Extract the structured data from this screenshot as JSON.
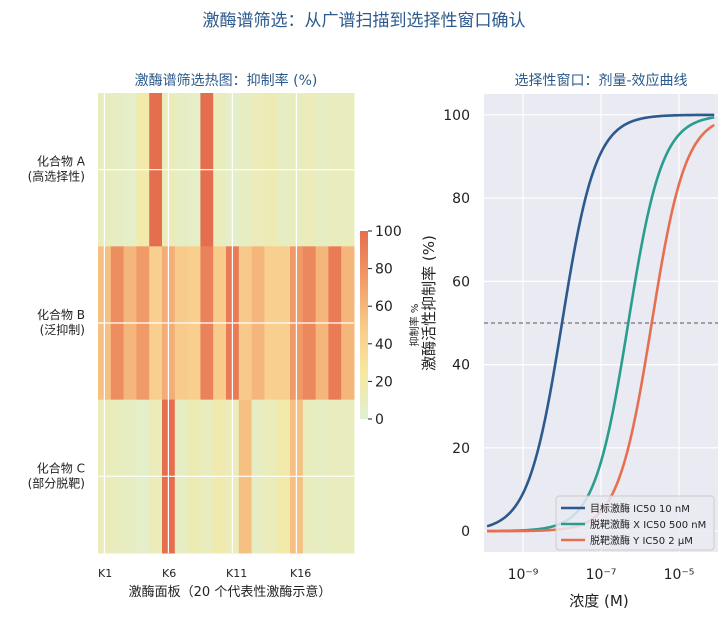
{
  "figure": {
    "title": "激酶谱筛选：从广谱扫描到选择性窗口确认",
    "title_color": "#2c5a8c"
  },
  "chart_data": [
    {
      "type": "heatmap",
      "title": "激酶谱筛选热图：抑制率 (%)",
      "xlabel": "激酶面板（20 个代表性激酶示意）",
      "x_ticks": [
        "K1",
        "K6",
        "K11",
        "K16"
      ],
      "x_tick_positions": [
        1,
        6,
        11,
        16
      ],
      "y_labels": [
        [
          "化合物 A",
          "(高选择性)"
        ],
        [
          "化合物 B",
          "(泛抑制)"
        ],
        [
          "化合物 C",
          "(部分脱靶)"
        ]
      ],
      "colorbar": {
        "label": "抑制率 %",
        "ticks": [
          0,
          20,
          40,
          60,
          80,
          100
        ],
        "range": [
          0,
          100
        ]
      },
      "color_stops": [
        "#dff0d2",
        "#f7e8a0",
        "#f8c98a",
        "#f09a68",
        "#e56e4f"
      ],
      "rows": [
        [
          10,
          8,
          5,
          20,
          100,
          12,
          8,
          6,
          100,
          10,
          5,
          8,
          12,
          15,
          8,
          10,
          12,
          8,
          10,
          10
        ],
        [
          55,
          82,
          60,
          75,
          45,
          65,
          48,
          45,
          88,
          48,
          92,
          50,
          60,
          45,
          45,
          75,
          85,
          60,
          92,
          60
        ],
        [
          12,
          10,
          8,
          5,
          12,
          100,
          8,
          15,
          10,
          18,
          12,
          55,
          8,
          12,
          20,
          55,
          10,
          8,
          10,
          10
        ]
      ]
    },
    {
      "type": "line",
      "title": "选择性窗口：剂量-效应曲线",
      "xlabel": "浓度 (M)",
      "ylabel": "激酶活性抑制率 (%)",
      "xscale": "log",
      "xlim": [
        1e-10,
        0.0001
      ],
      "ylim": [
        -5,
        105
      ],
      "x_ticks": [
        1e-09,
        1e-07,
        1e-05
      ],
      "x_tick_labels": [
        "10⁻⁹",
        "10⁻⁷",
        "10⁻⁵"
      ],
      "y_ticks": [
        0,
        20,
        40,
        60,
        80,
        100
      ],
      "grid": true,
      "reference_line": {
        "y": 50,
        "style": "dashed"
      },
      "legend_position": "lower-right",
      "series": [
        {
          "name": "目标激酶 IC50 10 nM",
          "ic50": 1e-08,
          "color": "#2c5a8c"
        },
        {
          "name": "脱靶激酶 X IC50 500 nM",
          "ic50": 5e-07,
          "color": "#2a9d8f"
        },
        {
          "name": "脱靶激酶 Y IC50 2 μM",
          "ic50": 2e-06,
          "color": "#e76f51"
        }
      ]
    }
  ]
}
